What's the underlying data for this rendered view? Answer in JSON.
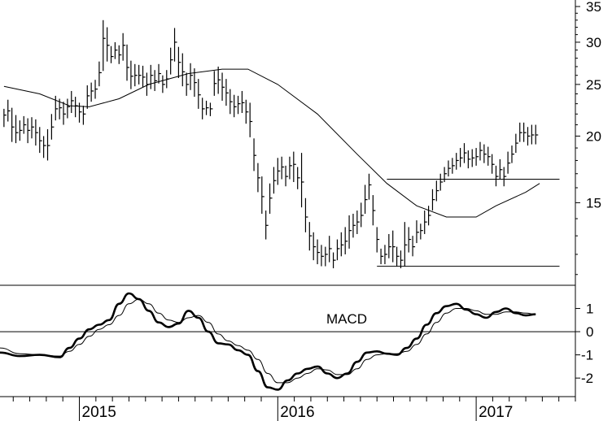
{
  "chart_data": [
    {
      "type": "ohlc",
      "price_axis": {
        "scale": "log",
        "ylim": [
          10.5,
          36
        ],
        "ticks": [
          "35",
          "30",
          "25",
          "20",
          "15"
        ],
        "tick_values": [
          35,
          30,
          25,
          20,
          15
        ]
      },
      "time_axis": {
        "xlim": [
          2014.6,
          2017.5
        ],
        "year_labels": [
          "2015",
          "2016",
          "2017"
        ],
        "year_values": [
          2015.0,
          2016.0,
          2017.0
        ]
      },
      "moving_average": {
        "x": [
          2014.62,
          2014.8,
          2014.95,
          2015.05,
          2015.2,
          2015.35,
          2015.55,
          2015.72,
          2015.85,
          2016.0,
          2016.2,
          2016.4,
          2016.55,
          2016.7,
          2016.85,
          2017.0,
          2017.1,
          2017.25,
          2017.32
        ],
        "y": [
          24.8,
          24.0,
          22.8,
          22.7,
          23.5,
          25.0,
          26.2,
          26.7,
          26.7,
          25.0,
          22.0,
          18.5,
          16.3,
          14.8,
          14.1,
          14.1,
          14.8,
          15.7,
          16.3
        ]
      },
      "support_resistance_lines": [
        {
          "x": [
            2016.55,
            2017.42
          ],
          "y": [
            16.6,
            16.6
          ]
        },
        {
          "x": [
            2016.5,
            2017.42
          ],
          "y": [
            11.4,
            11.4
          ]
        }
      ],
      "bars": {
        "x": [
          2014.62,
          2014.64,
          2014.66,
          2014.68,
          2014.7,
          2014.72,
          2014.74,
          2014.76,
          2014.78,
          2014.8,
          2014.82,
          2014.84,
          2014.86,
          2014.88,
          2014.9,
          2014.92,
          2014.94,
          2014.96,
          2014.98,
          2015.0,
          2015.02,
          2015.04,
          2015.06,
          2015.08,
          2015.1,
          2015.12,
          2015.14,
          2015.16,
          2015.18,
          2015.2,
          2015.22,
          2015.24,
          2015.26,
          2015.28,
          2015.3,
          2015.32,
          2015.34,
          2015.36,
          2015.38,
          2015.4,
          2015.42,
          2015.44,
          2015.46,
          2015.48,
          2015.5,
          2015.52,
          2015.54,
          2015.56,
          2015.58,
          2015.6,
          2015.62,
          2015.64,
          2015.66,
          2015.68,
          2015.7,
          2015.72,
          2015.74,
          2015.76,
          2015.78,
          2015.8,
          2015.82,
          2015.84,
          2015.86,
          2015.88,
          2015.9,
          2015.92,
          2015.94,
          2015.96,
          2015.98,
          2016.0,
          2016.02,
          2016.04,
          2016.06,
          2016.08,
          2016.1,
          2016.12,
          2016.14,
          2016.16,
          2016.18,
          2016.2,
          2016.22,
          2016.24,
          2016.26,
          2016.28,
          2016.3,
          2016.32,
          2016.34,
          2016.36,
          2016.38,
          2016.4,
          2016.42,
          2016.44,
          2016.46,
          2016.48,
          2016.5,
          2016.52,
          2016.54,
          2016.56,
          2016.58,
          2016.6,
          2016.62,
          2016.64,
          2016.66,
          2016.68,
          2016.7,
          2016.72,
          2016.74,
          2016.76,
          2016.78,
          2016.8,
          2016.82,
          2016.84,
          2016.86,
          2016.88,
          2016.9,
          2016.92,
          2016.94,
          2016.96,
          2016.98,
          2017.0,
          2017.02,
          2017.04,
          2017.06,
          2017.08,
          2017.1,
          2017.12,
          2017.14,
          2017.16,
          2017.18,
          2017.2,
          2017.22,
          2017.24,
          2017.26,
          2017.28,
          2017.3
        ],
        "high": [
          22.5,
          23.4,
          22.6,
          21.9,
          21.4,
          21.8,
          21.6,
          21.7,
          21.5,
          20.8,
          20.0,
          20.6,
          22.0,
          23.8,
          23.5,
          23.2,
          23.5,
          24.3,
          23.7,
          23.1,
          22.8,
          24.9,
          25.2,
          25.5,
          27.6,
          33.0,
          32.0,
          29.5,
          30.0,
          29.6,
          31.2,
          29.7,
          27.7,
          27.3,
          27.2,
          27.1,
          26.3,
          27.2,
          26.6,
          27.3,
          26.0,
          26.6,
          29.3,
          31.9,
          29.4,
          28.6,
          26.3,
          27.4,
          26.8,
          25.6,
          23.6,
          23.3,
          23.1,
          26.5,
          27.0,
          26.3,
          25.6,
          24.5,
          23.9,
          23.8,
          24.3,
          23.4,
          23.1,
          19.8,
          17.8,
          16.8,
          14.5,
          16.3,
          17.5,
          18.2,
          18.3,
          17.6,
          18.3,
          18.7,
          17.5,
          18.6,
          15.3,
          13.8,
          13.2,
          12.8,
          12.5,
          12.4,
          13.0,
          12.1,
          12.8,
          13.2,
          13.5,
          14.2,
          14.3,
          14.5,
          15.0,
          16.2,
          17.0,
          15.5,
          13.5,
          12.3,
          12.5,
          13.1,
          13.3,
          12.4,
          12.2,
          13.8,
          13.5,
          13.0,
          13.9,
          13.7,
          14.5,
          14.8,
          15.9,
          16.5,
          17.0,
          17.5,
          18.0,
          18.2,
          18.6,
          19.0,
          19.4,
          18.8,
          18.9,
          19.0,
          19.5,
          19.3,
          19.1,
          18.5,
          17.6,
          18.1,
          17.5,
          18.7,
          19.2,
          20.2,
          21.2,
          21.2,
          20.8,
          21.0,
          21.0
        ],
        "low": [
          20.8,
          21.3,
          19.5,
          19.4,
          19.6,
          20.2,
          19.4,
          19.8,
          19.2,
          18.6,
          18.2,
          18.0,
          19.7,
          21.4,
          21.5,
          21.0,
          21.6,
          22.1,
          21.7,
          21.2,
          21.0,
          22.5,
          23.2,
          23.5,
          24.8,
          26.5,
          27.6,
          27.4,
          27.9,
          27.3,
          27.7,
          25.4,
          24.5,
          24.8,
          25.0,
          24.7,
          23.8,
          24.5,
          24.3,
          25.1,
          24.1,
          24.6,
          26.1,
          27.6,
          25.7,
          24.8,
          23.8,
          24.4,
          23.7,
          22.5,
          21.5,
          21.9,
          21.8,
          23.8,
          24.0,
          23.3,
          22.8,
          22.0,
          21.7,
          22.0,
          22.1,
          21.1,
          19.9,
          17.2,
          15.7,
          14.3,
          12.8,
          14.3,
          15.6,
          16.2,
          16.6,
          16.1,
          16.6,
          16.4,
          15.9,
          14.7,
          13.2,
          12.2,
          11.7,
          11.5,
          11.4,
          11.4,
          11.6,
          11.3,
          11.7,
          11.9,
          12.0,
          12.3,
          12.9,
          13.1,
          13.5,
          14.3,
          15.2,
          13.6,
          12.1,
          11.5,
          11.5,
          11.8,
          11.6,
          11.4,
          11.3,
          11.4,
          12.1,
          11.9,
          12.6,
          12.8,
          13.1,
          13.6,
          14.5,
          15.1,
          15.8,
          16.4,
          16.8,
          17.0,
          17.3,
          17.5,
          17.8,
          17.4,
          17.5,
          17.6,
          18.0,
          17.8,
          17.6,
          17.0,
          16.1,
          16.6,
          16.1,
          17.0,
          17.8,
          18.6,
          19.5,
          19.5,
          19.2,
          19.3,
          19.3
        ],
        "close": [
          21.9,
          22.3,
          20.8,
          20.3,
          20.5,
          21.0,
          20.5,
          20.8,
          20.3,
          19.6,
          19.2,
          19.2,
          20.8,
          22.5,
          22.6,
          22.0,
          22.7,
          23.3,
          22.8,
          22.2,
          22.0,
          23.8,
          24.3,
          24.5,
          26.3,
          30.5,
          29.6,
          28.2,
          29.0,
          28.4,
          29.6,
          26.9,
          25.9,
          26.0,
          26.0,
          25.8,
          25.0,
          26.0,
          25.4,
          26.2,
          25.0,
          25.6,
          27.8,
          30.0,
          27.5,
          26.4,
          25.0,
          26.0,
          25.2,
          23.9,
          22.5,
          22.6,
          22.5,
          25.1,
          25.5,
          24.7,
          24.1,
          23.2,
          22.7,
          23.0,
          23.1,
          22.2,
          21.3,
          18.4,
          16.7,
          15.4,
          13.6,
          15.3,
          16.5,
          17.2,
          17.5,
          16.8,
          17.6,
          17.7,
          16.7,
          16.4,
          14.1,
          13.0,
          12.4,
          12.1,
          11.9,
          12.0,
          12.3,
          11.7,
          12.3,
          12.5,
          12.7,
          13.3,
          13.6,
          13.8,
          14.2,
          15.2,
          16.2,
          14.5,
          12.8,
          11.9,
          12.0,
          12.4,
          12.4,
          11.9,
          11.7,
          12.5,
          12.8,
          12.4,
          13.2,
          13.3,
          13.8,
          14.2,
          15.2,
          15.8,
          16.4,
          17.0,
          17.4,
          17.6,
          18.0,
          18.2,
          18.6,
          18.1,
          18.2,
          18.3,
          18.8,
          18.5,
          18.3,
          17.7,
          16.8,
          17.3,
          16.8,
          17.8,
          18.5,
          19.4,
          20.3,
          20.3,
          20.0,
          20.1,
          20.1
        ]
      }
    },
    {
      "type": "line",
      "label": "MACD",
      "ylim": [
        -2.8,
        2.0
      ],
      "ticks": [
        "1",
        "0",
        "-1",
        "-2"
      ],
      "tick_values": [
        1,
        0,
        -1,
        -2
      ],
      "zero_line": true,
      "series": [
        {
          "style": "thick",
          "x": [
            2014.6,
            2014.7,
            2014.8,
            2014.9,
            2014.95,
            2015.0,
            2015.05,
            2015.1,
            2015.15,
            2015.2,
            2015.25,
            2015.3,
            2015.35,
            2015.4,
            2015.45,
            2015.5,
            2015.55,
            2015.6,
            2015.65,
            2015.7,
            2015.75,
            2015.8,
            2015.85,
            2015.9,
            2015.95,
            2016.0,
            2016.05,
            2016.1,
            2016.15,
            2016.2,
            2016.25,
            2016.3,
            2016.35,
            2016.4,
            2016.45,
            2016.5,
            2016.55,
            2016.6,
            2016.65,
            2016.7,
            2016.75,
            2016.8,
            2016.85,
            2016.9,
            2016.95,
            2017.0,
            2017.05,
            2017.1,
            2017.15,
            2017.2,
            2017.25,
            2017.3
          ],
          "y": [
            -0.9,
            -1.05,
            -1.0,
            -1.1,
            -0.7,
            -0.3,
            0.1,
            0.3,
            0.5,
            1.2,
            1.65,
            1.4,
            0.9,
            0.4,
            0.2,
            0.35,
            0.9,
            0.6,
            0.0,
            -0.5,
            -0.55,
            -0.8,
            -1.0,
            -1.7,
            -2.4,
            -2.5,
            -2.1,
            -1.8,
            -1.6,
            -1.5,
            -1.8,
            -2.0,
            -1.8,
            -1.3,
            -0.9,
            -0.85,
            -0.95,
            -1.0,
            -0.7,
            -0.3,
            0.3,
            0.8,
            1.1,
            1.2,
            0.95,
            0.75,
            0.6,
            0.85,
            1.0,
            0.8,
            0.7,
            0.75
          ]
        },
        {
          "style": "thin",
          "x": [
            2014.6,
            2014.7,
            2014.8,
            2014.9,
            2014.95,
            2015.0,
            2015.05,
            2015.1,
            2015.15,
            2015.2,
            2015.25,
            2015.3,
            2015.35,
            2015.4,
            2015.45,
            2015.5,
            2015.55,
            2015.6,
            2015.65,
            2015.7,
            2015.75,
            2015.8,
            2015.85,
            2015.9,
            2015.95,
            2016.0,
            2016.05,
            2016.1,
            2016.15,
            2016.2,
            2016.25,
            2016.3,
            2016.35,
            2016.4,
            2016.45,
            2016.5,
            2016.55,
            2016.6,
            2016.65,
            2016.7,
            2016.75,
            2016.8,
            2016.85,
            2016.9,
            2016.95,
            2017.0,
            2017.05,
            2017.1,
            2017.15,
            2017.2,
            2017.25,
            2017.3
          ],
          "y": [
            -0.7,
            -0.95,
            -1.0,
            -1.05,
            -0.85,
            -0.55,
            -0.2,
            0.1,
            0.3,
            0.7,
            1.2,
            1.4,
            1.2,
            0.8,
            0.5,
            0.4,
            0.6,
            0.7,
            0.4,
            -0.1,
            -0.4,
            -0.6,
            -0.8,
            -1.2,
            -1.8,
            -2.2,
            -2.2,
            -2.0,
            -1.8,
            -1.6,
            -1.65,
            -1.85,
            -1.85,
            -1.6,
            -1.2,
            -1.0,
            -0.95,
            -0.95,
            -0.85,
            -0.55,
            -0.1,
            0.4,
            0.8,
            1.0,
            1.0,
            0.9,
            0.75,
            0.75,
            0.85,
            0.85,
            0.8,
            0.75
          ]
        }
      ]
    }
  ]
}
